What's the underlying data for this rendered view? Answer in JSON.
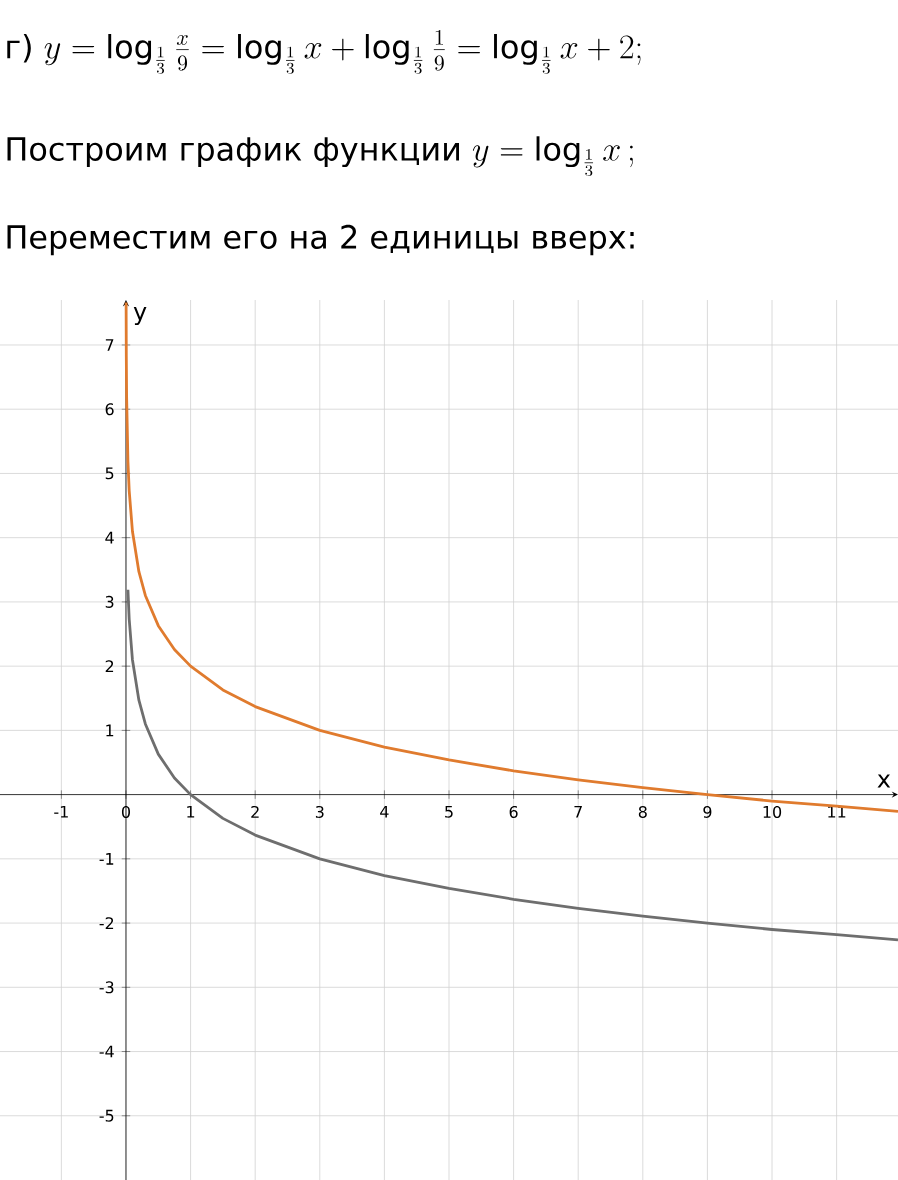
{
  "chart_data": {
    "type": "line",
    "annotations": [
      "г)",
      "y=\\log_{\\frac{1}{3}}\\frac{x}{9}=\\log_{\\frac{1}{3}}x+\\log_{\\frac{1}{3}}\\frac{1}{9}=\\log_{\\frac{1}{3}}x+2;",
      "Построим график функции",
      "y=\\log_{\\frac{1}{3}}x\\,;",
      "Переместим его на 2 единицы вверх:"
    ],
    "xlabel": "x",
    "ylabel": "y",
    "series": [
      {
        "color": "#e07b2e",
        "x": [
          0.002,
          0.005,
          0.01,
          0.03,
          0.05,
          0.1,
          0.2,
          0.3,
          0.5,
          0.75,
          1,
          1.5,
          2,
          3,
          4,
          5,
          6,
          7,
          8,
          9,
          10,
          11,
          11.95
        ],
        "values": [
          7.66,
          6.82,
          6.19,
          5.19,
          4.73,
          4.1,
          3.47,
          3.1,
          2.63,
          2.26,
          2,
          1.63,
          1.37,
          1,
          0.74,
          0.54,
          0.37,
          0.23,
          0.11,
          0,
          -0.1,
          -0.18,
          -0.26
        ]
      },
      {
        "color": "#6e6e6e",
        "x": [
          0.03,
          0.05,
          0.1,
          0.2,
          0.3,
          0.5,
          0.75,
          1,
          1.5,
          2,
          3,
          4,
          5,
          6,
          7,
          8,
          9,
          10,
          11,
          11.95
        ],
        "values": [
          3.19,
          2.73,
          2.1,
          1.47,
          1.1,
          0.63,
          0.26,
          0,
          -0.37,
          -0.63,
          -1,
          -1.26,
          -1.46,
          -1.63,
          -1.77,
          -1.89,
          -2,
          -2.1,
          -2.18,
          -2.26
        ]
      }
    ],
    "xlim": [
      -1.95,
      11.95
    ],
    "ylim": [
      -6,
      7.7
    ],
    "xticks": [
      -1,
      0,
      1,
      2,
      3,
      4,
      5,
      6,
      7,
      8,
      9,
      10,
      11
    ],
    "yticks": [
      -5,
      -4,
      -3,
      -2,
      -1,
      1,
      2,
      3,
      4,
      5,
      6,
      7
    ],
    "grid": true
  }
}
